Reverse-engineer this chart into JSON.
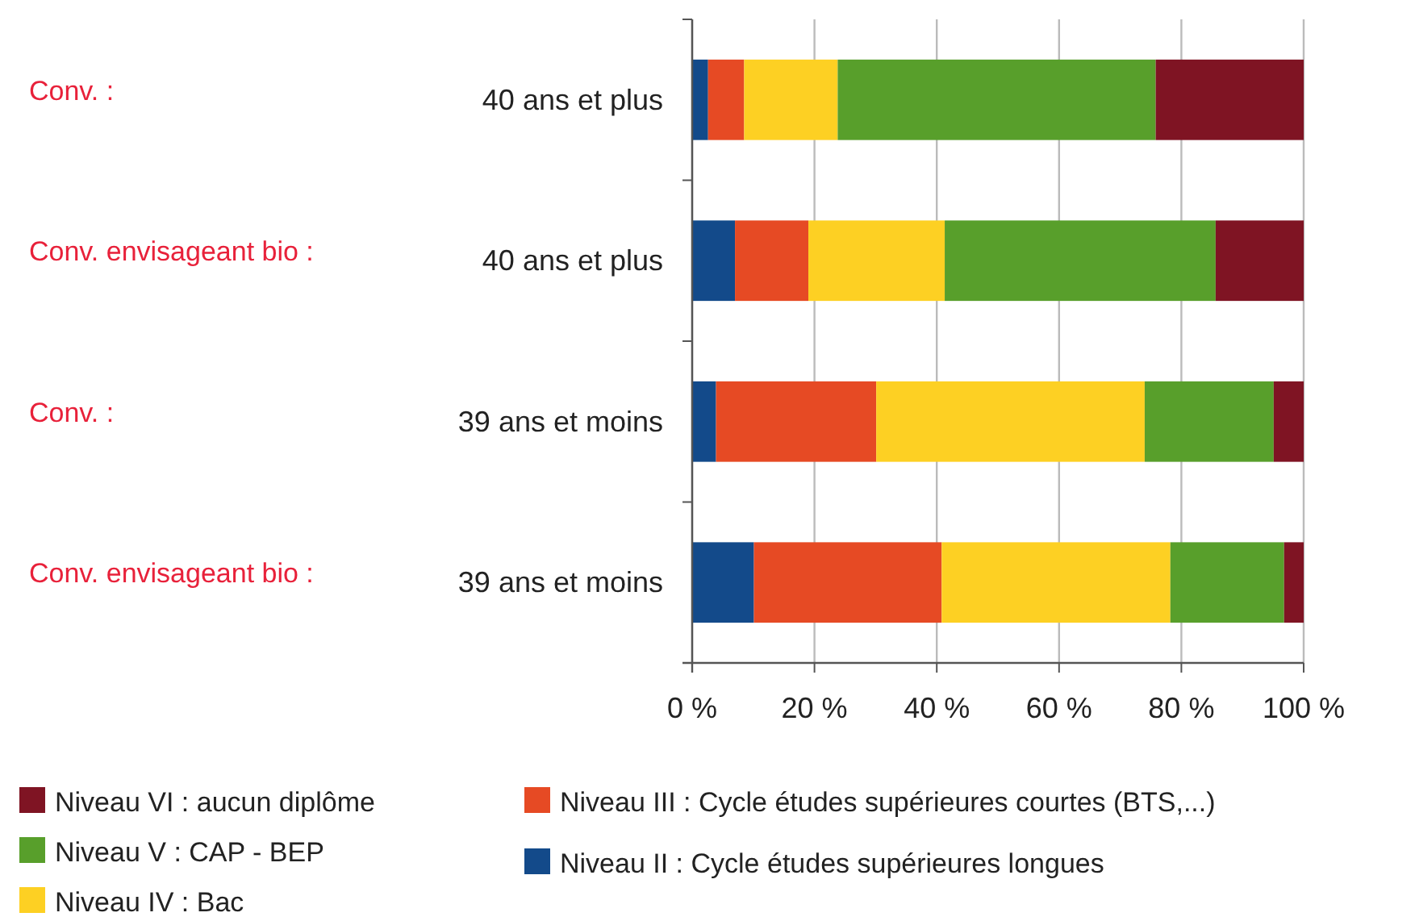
{
  "chart_data": {
    "type": "bar",
    "orientation": "horizontal",
    "stacked": true,
    "categories": [
      "40 ans et plus",
      "40 ans et plus",
      "39 ans et moins",
      "39 ans et moins"
    ],
    "annotations": [
      "Conv. :",
      "Conv. envisageant bio :",
      "Conv. :",
      "Conv. envisageant bio :"
    ],
    "series": [
      {
        "name": "Niveau II : Cycle études supérieures longues",
        "color": "#134a8a",
        "values": [
          2.6,
          7.0,
          3.9,
          10.1
        ]
      },
      {
        "name": "Niveau III : Cycle études supérieures courtes (BTS,...)",
        "color": "#e64a24",
        "values": [
          5.9,
          12.0,
          26.2,
          30.7
        ]
      },
      {
        "name": "Niveau IV : Bac",
        "color": "#fdd023",
        "values": [
          15.3,
          22.3,
          43.9,
          37.4
        ]
      },
      {
        "name": "Niveau V : CAP - BEP",
        "color": "#589f2b",
        "values": [
          52.0,
          44.3,
          21.1,
          18.6
        ]
      },
      {
        "name": "Niveau VI : aucun diplôme",
        "color": "#7f1423",
        "values": [
          24.2,
          14.4,
          4.9,
          3.2
        ]
      }
    ],
    "xlim": [
      0,
      100
    ],
    "xticks": [
      {
        "value": 0,
        "label": "0 %"
      },
      {
        "value": 20,
        "label": "20 %"
      },
      {
        "value": 40,
        "label": "40 %"
      },
      {
        "value": 60,
        "label": "60 %"
      },
      {
        "value": 80,
        "label": "80 %"
      },
      {
        "value": 100,
        "label": "100 %"
      }
    ],
    "grid": "x",
    "legend": "bottom"
  }
}
